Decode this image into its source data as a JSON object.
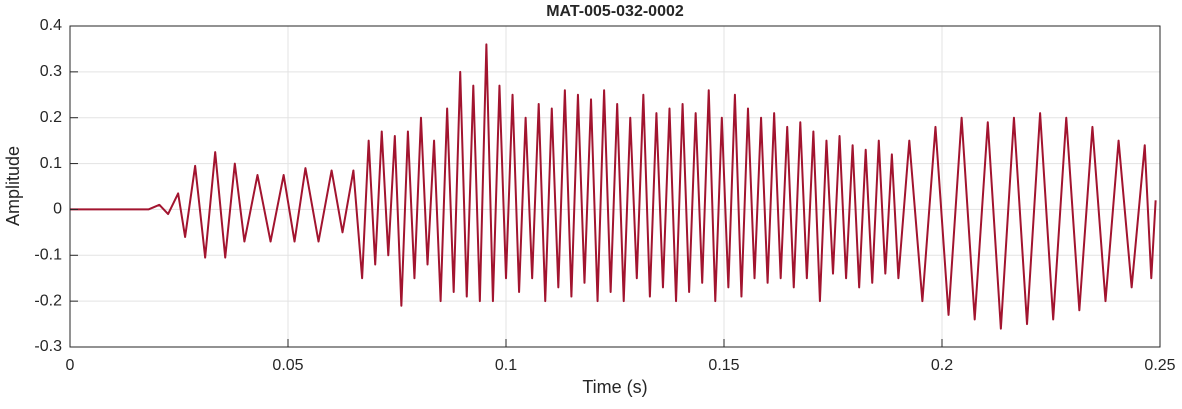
{
  "chart_data": {
    "type": "line",
    "title": "MAT-005-032-0002",
    "xlabel": "Time (s)",
    "ylabel": "Amplitude",
    "xlim": [
      0,
      0.25
    ],
    "ylim": [
      -0.3,
      0.4
    ],
    "xticks": [
      0,
      0.05,
      0.1,
      0.15,
      0.2,
      0.25
    ],
    "yticks": [
      -0.3,
      -0.2,
      -0.1,
      0,
      0.1,
      0.2,
      0.3,
      0.4
    ],
    "grid": true,
    "series": [
      {
        "color": "#a2142f",
        "x": [
          0,
          0.01,
          0.018,
          0.0205,
          0.0225,
          0.0248,
          0.0264,
          0.0287,
          0.031,
          0.0333,
          0.0356,
          0.0378,
          0.04,
          0.043,
          0.046,
          0.049,
          0.0515,
          0.054,
          0.057,
          0.06,
          0.0625,
          0.065,
          0.067,
          0.0685,
          0.07,
          0.0715,
          0.073,
          0.0745,
          0.076,
          0.0775,
          0.079,
          0.0805,
          0.082,
          0.0835,
          0.085,
          0.0865,
          0.088,
          0.0895,
          0.091,
          0.0925,
          0.094,
          0.0955,
          0.097,
          0.0985,
          0.1,
          0.1015,
          0.103,
          0.1045,
          0.106,
          0.1075,
          0.109,
          0.1105,
          0.112,
          0.1135,
          0.115,
          0.1165,
          0.118,
          0.1195,
          0.121,
          0.1225,
          0.124,
          0.1255,
          0.127,
          0.1285,
          0.13,
          0.1315,
          0.133,
          0.1345,
          0.136,
          0.1375,
          0.139,
          0.1405,
          0.142,
          0.1435,
          0.145,
          0.1465,
          0.148,
          0.1495,
          0.151,
          0.1525,
          0.154,
          0.1555,
          0.157,
          0.1585,
          0.16,
          0.1615,
          0.163,
          0.1645,
          0.166,
          0.1675,
          0.169,
          0.1705,
          0.172,
          0.1735,
          0.175,
          0.1765,
          0.178,
          0.1795,
          0.181,
          0.1825,
          0.184,
          0.1855,
          0.187,
          0.1885,
          0.19,
          0.1925,
          0.1955,
          0.1985,
          0.2015,
          0.2045,
          0.2075,
          0.2105,
          0.2135,
          0.2165,
          0.2195,
          0.2225,
          0.2255,
          0.2285,
          0.2315,
          0.2345,
          0.2375,
          0.2405,
          0.2435,
          0.2465,
          0.248,
          0.249
        ],
        "values": [
          0,
          0,
          0,
          0.01,
          -0.01,
          0.035,
          -0.06,
          0.095,
          -0.105,
          0.125,
          -0.105,
          0.1,
          -0.07,
          0.075,
          -0.07,
          0.075,
          -0.07,
          0.09,
          -0.07,
          0.085,
          -0.05,
          0.085,
          -0.15,
          0.15,
          -0.12,
          0.17,
          -0.1,
          0.16,
          -0.21,
          0.17,
          -0.15,
          0.2,
          -0.12,
          0.15,
          -0.2,
          0.22,
          -0.18,
          0.3,
          -0.19,
          0.27,
          -0.2,
          0.36,
          -0.2,
          0.27,
          -0.15,
          0.25,
          -0.18,
          0.2,
          -0.15,
          0.23,
          -0.2,
          0.22,
          -0.17,
          0.26,
          -0.19,
          0.25,
          -0.16,
          0.24,
          -0.2,
          0.26,
          -0.18,
          0.23,
          -0.2,
          0.2,
          -0.15,
          0.25,
          -0.19,
          0.21,
          -0.17,
          0.22,
          -0.2,
          0.23,
          -0.18,
          0.21,
          -0.16,
          0.26,
          -0.2,
          0.2,
          -0.17,
          0.25,
          -0.19,
          0.22,
          -0.15,
          0.2,
          -0.16,
          0.21,
          -0.15,
          0.18,
          -0.17,
          0.19,
          -0.15,
          0.17,
          -0.2,
          0.15,
          -0.14,
          0.16,
          -0.15,
          0.14,
          -0.17,
          0.13,
          -0.16,
          0.15,
          -0.14,
          0.12,
          -0.15,
          0.15,
          -0.2,
          0.18,
          -0.23,
          0.2,
          -0.24,
          0.19,
          -0.26,
          0.2,
          -0.25,
          0.21,
          -0.24,
          0.2,
          -0.22,
          0.18,
          -0.2,
          0.15,
          -0.17,
          0.14,
          -0.15,
          0.02
        ]
      }
    ]
  }
}
